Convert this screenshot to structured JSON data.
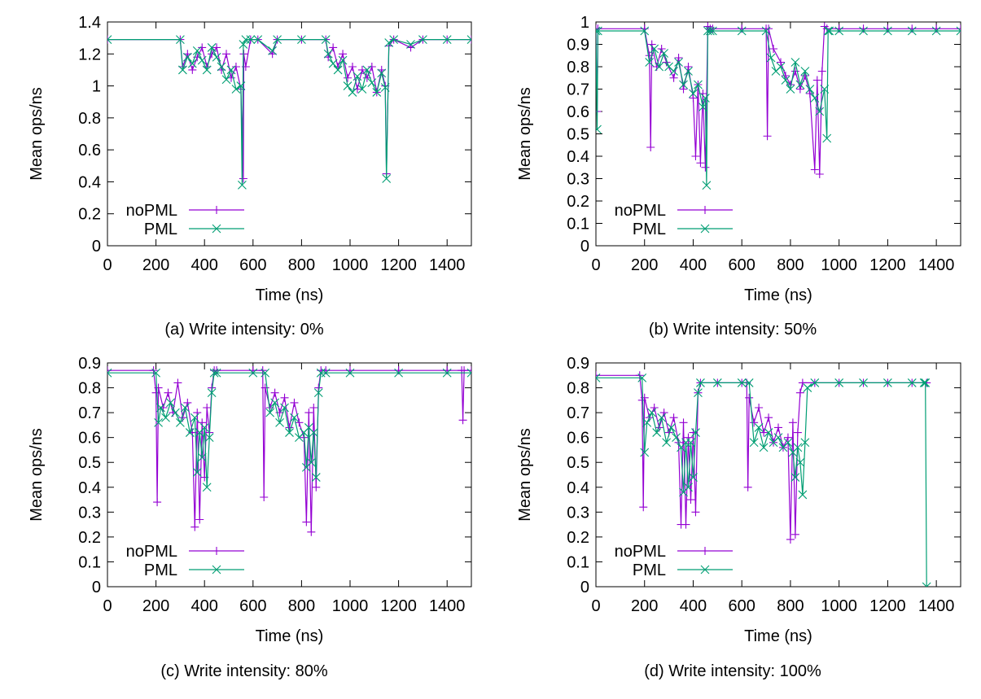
{
  "colors": {
    "noPML": "#9400d3",
    "PML": "#009e73"
  },
  "chart_data": [
    {
      "type": "line",
      "caption": "(a) Write intensity: 0%",
      "xlabel": "Time (ns)",
      "ylabel": "Mean ops/ns",
      "xlim": [
        0,
        1500
      ],
      "ylim": [
        0,
        1.4
      ],
      "xticks": [
        0,
        200,
        400,
        600,
        800,
        1000,
        1200,
        1400
      ],
      "yticks": [
        0,
        0.2,
        0.4,
        0.6,
        0.8,
        1,
        1.2,
        1.4
      ],
      "ytick_labels": [
        "0",
        "0.2",
        "0.4",
        "0.6",
        "0.8",
        "1",
        "1.2",
        "1.4"
      ],
      "legend_position": "bottom-left",
      "series": [
        {
          "name": "noPML",
          "marker": "plus",
          "x": [
            0,
            300,
            310,
            330,
            350,
            370,
            390,
            410,
            430,
            450,
            470,
            490,
            510,
            530,
            550,
            560,
            562,
            570,
            590,
            620,
            680,
            700,
            800,
            900,
            910,
            930,
            950,
            970,
            990,
            1010,
            1030,
            1050,
            1070,
            1090,
            1110,
            1130,
            1145,
            1150,
            1160,
            1180,
            1250,
            1300,
            1400,
            1500
          ],
          "y": [
            1.29,
            1.29,
            1.12,
            1.2,
            1.1,
            1.18,
            1.24,
            1.12,
            1.2,
            1.24,
            1.1,
            1.2,
            1.05,
            1.12,
            0.98,
            0.42,
            1.2,
            1.12,
            1.29,
            1.29,
            1.2,
            1.29,
            1.29,
            1.29,
            1.18,
            1.24,
            1.12,
            1.2,
            1.05,
            1.12,
            0.98,
            1.1,
            1.05,
            1.12,
            0.96,
            1.1,
            1.0,
            0.45,
            1.25,
            1.29,
            1.24,
            1.29,
            1.29,
            1.29
          ]
        },
        {
          "name": "PML",
          "marker": "cross",
          "x": [
            0,
            300,
            310,
            330,
            350,
            370,
            390,
            410,
            430,
            450,
            470,
            490,
            510,
            530,
            550,
            555,
            560,
            570,
            590,
            620,
            680,
            700,
            800,
            900,
            910,
            930,
            950,
            970,
            990,
            1010,
            1030,
            1050,
            1070,
            1090,
            1110,
            1130,
            1145,
            1150,
            1160,
            1180,
            1250,
            1300,
            1400,
            1500
          ],
          "y": [
            1.29,
            1.29,
            1.1,
            1.18,
            1.14,
            1.22,
            1.16,
            1.1,
            1.24,
            1.18,
            1.12,
            1.04,
            1.1,
            0.98,
            1.0,
            0.38,
            1.26,
            1.29,
            1.29,
            1.29,
            1.22,
            1.29,
            1.29,
            1.29,
            1.2,
            1.14,
            1.1,
            1.16,
            1.0,
            0.96,
            1.06,
            0.98,
            1.1,
            1.02,
            0.96,
            1.08,
            0.99,
            0.42,
            1.27,
            1.29,
            1.26,
            1.29,
            1.29,
            1.29
          ]
        }
      ]
    },
    {
      "type": "line",
      "caption": "(b) Write intensity: 50%",
      "xlabel": "Time (ns)",
      "ylabel": "Mean ops/ns",
      "xlim": [
        0,
        1500
      ],
      "ylim": [
        0,
        1
      ],
      "xticks": [
        0,
        200,
        400,
        600,
        800,
        1000,
        1200,
        1400
      ],
      "yticks": [
        0,
        0.1,
        0.2,
        0.3,
        0.4,
        0.5,
        0.6,
        0.7,
        0.8,
        0.9,
        1
      ],
      "ytick_labels": [
        "0",
        "0.1",
        "0.2",
        "0.3",
        "0.4",
        "0.5",
        "0.6",
        "0.7",
        "0.8",
        "0.9",
        "1"
      ],
      "legend_position": "bottom-left",
      "series": [
        {
          "name": "noPML",
          "marker": "plus",
          "x": [
            0,
            5,
            8,
            200,
            220,
            225,
            230,
            250,
            270,
            290,
            320,
            340,
            360,
            380,
            400,
            410,
            420,
            430,
            440,
            450,
            460,
            470,
            480,
            600,
            700,
            705,
            710,
            730,
            760,
            780,
            800,
            820,
            840,
            860,
            880,
            900,
            910,
            920,
            930,
            940,
            950,
            1000,
            1100,
            1200,
            1300,
            1400,
            1500
          ],
          "y": [
            0.97,
            0.6,
            0.97,
            0.97,
            0.85,
            0.44,
            0.9,
            0.8,
            0.88,
            0.82,
            0.75,
            0.84,
            0.7,
            0.8,
            0.66,
            0.4,
            0.72,
            0.37,
            0.68,
            0.35,
            0.98,
            0.97,
            0.97,
            0.97,
            0.97,
            0.49,
            0.97,
            0.88,
            0.82,
            0.76,
            0.72,
            0.78,
            0.7,
            0.76,
            0.68,
            0.34,
            0.74,
            0.32,
            0.78,
            0.98,
            0.97,
            0.97,
            0.97,
            0.97,
            0.97,
            0.97,
            0.97
          ]
        },
        {
          "name": "PML",
          "marker": "cross",
          "x": [
            0,
            5,
            8,
            200,
            220,
            240,
            260,
            280,
            300,
            320,
            340,
            360,
            380,
            400,
            420,
            440,
            450,
            455,
            460,
            470,
            480,
            600,
            700,
            720,
            740,
            760,
            780,
            800,
            820,
            840,
            860,
            880,
            900,
            920,
            940,
            950,
            955,
            960,
            1000,
            1100,
            1200,
            1300,
            1400,
            1500
          ],
          "y": [
            0.96,
            0.52,
            0.96,
            0.96,
            0.82,
            0.88,
            0.8,
            0.86,
            0.8,
            0.78,
            0.82,
            0.72,
            0.78,
            0.68,
            0.72,
            0.62,
            0.66,
            0.27,
            0.96,
            0.96,
            0.96,
            0.96,
            0.96,
            0.84,
            0.78,
            0.8,
            0.74,
            0.7,
            0.82,
            0.72,
            0.78,
            0.7,
            0.66,
            0.6,
            0.7,
            0.48,
            0.96,
            0.96,
            0.96,
            0.96,
            0.96,
            0.96,
            0.96,
            0.96
          ]
        }
      ]
    },
    {
      "type": "line",
      "caption": "(c) Write intensity: 80%",
      "xlabel": "Time (ns)",
      "ylabel": "Mean ops/ns",
      "xlim": [
        0,
        1500
      ],
      "ylim": [
        0,
        0.9
      ],
      "xticks": [
        0,
        200,
        400,
        600,
        800,
        1000,
        1200,
        1400
      ],
      "yticks": [
        0,
        0.1,
        0.2,
        0.3,
        0.4,
        0.5,
        0.6,
        0.7,
        0.8,
        0.9
      ],
      "ytick_labels": [
        "0",
        "0.1",
        "0.2",
        "0.3",
        "0.4",
        "0.5",
        "0.6",
        "0.7",
        "0.8",
        "0.9"
      ],
      "legend_position": "bottom-left",
      "series": [
        {
          "name": "noPML",
          "marker": "plus",
          "x": [
            0,
            190,
            200,
            205,
            210,
            230,
            250,
            270,
            290,
            310,
            330,
            350,
            360,
            370,
            380,
            390,
            400,
            410,
            420,
            430,
            440,
            450,
            600,
            640,
            645,
            650,
            670,
            690,
            710,
            730,
            750,
            770,
            790,
            810,
            820,
            830,
            840,
            850,
            860,
            870,
            880,
            900,
            1000,
            1200,
            1400,
            1460,
            1465,
            1470,
            1500
          ],
          "y": [
            0.87,
            0.87,
            0.78,
            0.34,
            0.8,
            0.72,
            0.78,
            0.7,
            0.82,
            0.68,
            0.74,
            0.62,
            0.24,
            0.7,
            0.27,
            0.66,
            0.44,
            0.72,
            0.62,
            0.8,
            0.87,
            0.87,
            0.87,
            0.87,
            0.36,
            0.8,
            0.72,
            0.78,
            0.7,
            0.76,
            0.64,
            0.74,
            0.66,
            0.6,
            0.26,
            0.7,
            0.22,
            0.72,
            0.4,
            0.8,
            0.87,
            0.87,
            0.87,
            0.87,
            0.87,
            0.87,
            0.67,
            0.87,
            0.87
          ]
        },
        {
          "name": "PML",
          "marker": "cross",
          "x": [
            0,
            200,
            210,
            220,
            240,
            260,
            280,
            300,
            320,
            340,
            360,
            370,
            380,
            390,
            400,
            410,
            420,
            430,
            440,
            450,
            600,
            650,
            670,
            690,
            710,
            730,
            750,
            770,
            790,
            810,
            820,
            830,
            840,
            850,
            860,
            870,
            880,
            900,
            1000,
            1200,
            1400,
            1500
          ],
          "y": [
            0.86,
            0.86,
            0.66,
            0.72,
            0.68,
            0.74,
            0.7,
            0.66,
            0.72,
            0.62,
            0.68,
            0.46,
            0.62,
            0.52,
            0.64,
            0.4,
            0.6,
            0.78,
            0.86,
            0.86,
            0.86,
            0.86,
            0.7,
            0.74,
            0.66,
            0.72,
            0.62,
            0.68,
            0.6,
            0.62,
            0.48,
            0.64,
            0.5,
            0.62,
            0.44,
            0.78,
            0.86,
            0.86,
            0.86,
            0.86,
            0.86,
            0.86
          ]
        }
      ]
    },
    {
      "type": "line",
      "caption": "(d) Write intensity: 100%",
      "xlabel": "Time (ns)",
      "ylabel": "Mean ops/ns",
      "xlim": [
        0,
        1500
      ],
      "ylim": [
        0,
        0.9
      ],
      "xticks": [
        0,
        200,
        400,
        600,
        800,
        1000,
        1200,
        1400
      ],
      "yticks": [
        0,
        0.1,
        0.2,
        0.3,
        0.4,
        0.5,
        0.6,
        0.7,
        0.8,
        0.9
      ],
      "ytick_labels": [
        "0",
        "0.1",
        "0.2",
        "0.3",
        "0.4",
        "0.5",
        "0.6",
        "0.7",
        "0.8",
        "0.9"
      ],
      "legend_position": "bottom-left",
      "series": [
        {
          "name": "noPML",
          "marker": "plus",
          "x": [
            0,
            180,
            190,
            195,
            200,
            220,
            240,
            260,
            280,
            300,
            320,
            340,
            350,
            360,
            370,
            380,
            390,
            400,
            410,
            420,
            430,
            500,
            600,
            620,
            625,
            630,
            650,
            670,
            690,
            710,
            730,
            750,
            770,
            790,
            800,
            810,
            820,
            830,
            840,
            850,
            900,
            1000,
            1100,
            1200,
            1300,
            1360
          ],
          "y": [
            0.85,
            0.85,
            0.75,
            0.32,
            0.76,
            0.68,
            0.72,
            0.64,
            0.7,
            0.62,
            0.68,
            0.58,
            0.25,
            0.66,
            0.25,
            0.6,
            0.35,
            0.62,
            0.3,
            0.78,
            0.82,
            0.82,
            0.82,
            0.82,
            0.4,
            0.76,
            0.66,
            0.72,
            0.62,
            0.68,
            0.58,
            0.64,
            0.56,
            0.6,
            0.19,
            0.66,
            0.21,
            0.62,
            0.78,
            0.82,
            0.82,
            0.82,
            0.82,
            0.82,
            0.82,
            0.82
          ]
        },
        {
          "name": "PML",
          "marker": "cross",
          "x": [
            0,
            190,
            200,
            210,
            230,
            250,
            270,
            290,
            310,
            330,
            350,
            360,
            370,
            380,
            390,
            400,
            410,
            420,
            430,
            500,
            600,
            630,
            650,
            670,
            690,
            710,
            730,
            750,
            770,
            790,
            810,
            820,
            830,
            840,
            850,
            860,
            870,
            900,
            1000,
            1100,
            1200,
            1300,
            1350,
            1355,
            1360
          ],
          "y": [
            0.84,
            0.84,
            0.54,
            0.66,
            0.7,
            0.62,
            0.68,
            0.58,
            0.64,
            0.6,
            0.56,
            0.38,
            0.58,
            0.4,
            0.58,
            0.44,
            0.62,
            0.78,
            0.82,
            0.82,
            0.82,
            0.82,
            0.58,
            0.64,
            0.56,
            0.62,
            0.58,
            0.6,
            0.56,
            0.58,
            0.54,
            0.44,
            0.56,
            0.5,
            0.37,
            0.58,
            0.8,
            0.82,
            0.82,
            0.82,
            0.82,
            0.82,
            0.82,
            0.82,
            0
          ]
        }
      ]
    }
  ]
}
